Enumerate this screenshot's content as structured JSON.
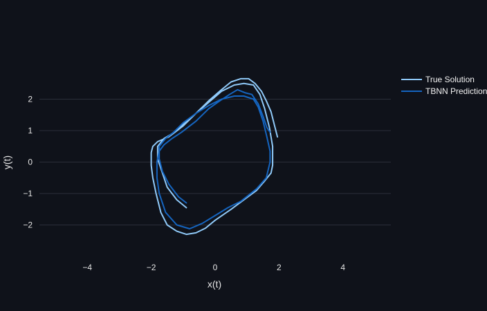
{
  "chart_data": {
    "type": "line",
    "title": "",
    "xlabel": "x(t)",
    "ylabel": "y(t)",
    "xlim": [
      -5.5,
      5.5
    ],
    "ylim": [
      -3.0,
      3.0
    ],
    "x_ticks": [
      -4,
      -2,
      0,
      2,
      4
    ],
    "y_ticks": [
      -2,
      -1,
      0,
      1,
      2
    ],
    "x_tick_labels": [
      "−4",
      "−2",
      "0",
      "2",
      "4"
    ],
    "y_tick_labels": [
      "−2",
      "−1",
      "0",
      "1",
      "2"
    ],
    "grid": "horizontal",
    "legend_placement": "top-right",
    "series": [
      {
        "name": "True Solution",
        "color": "#90caf9",
        "x": [
          -0.9,
          -1.2,
          -1.5,
          -1.65,
          -1.8,
          -1.8,
          -1.6,
          -1.35,
          -1.0,
          -0.6,
          -0.2,
          0.2,
          0.6,
          0.9,
          1.2,
          1.4,
          1.55,
          1.7,
          1.8,
          1.8,
          1.75,
          1.55,
          1.3,
          0.9,
          0.5,
          0.0,
          -0.3,
          -0.6,
          -0.9,
          -1.2,
          -1.5,
          -1.7,
          -1.85,
          -1.95,
          -2.0,
          -2.0,
          -1.95,
          -1.8,
          -1.45,
          -1.0,
          -0.6,
          -0.2,
          0.2,
          0.5,
          0.8,
          1.05,
          1.25,
          1.45,
          1.6,
          1.75,
          1.85,
          1.95
        ],
        "y": [
          -1.45,
          -1.2,
          -0.8,
          -0.35,
          0.1,
          0.5,
          0.75,
          0.9,
          1.2,
          1.55,
          1.9,
          2.25,
          2.45,
          2.5,
          2.45,
          2.15,
          1.7,
          1.1,
          0.5,
          -0.1,
          -0.35,
          -0.6,
          -0.9,
          -1.2,
          -1.5,
          -1.85,
          -2.1,
          -2.25,
          -2.3,
          -2.2,
          -2.0,
          -1.6,
          -1.0,
          -0.5,
          -0.1,
          0.3,
          0.5,
          0.65,
          0.8,
          1.15,
          1.55,
          1.95,
          2.3,
          2.55,
          2.65,
          2.65,
          2.5,
          2.25,
          1.95,
          1.6,
          1.2,
          0.8
        ]
      },
      {
        "name": "TBNN Prediction",
        "color": "#1565c0",
        "x": [
          -0.9,
          -1.15,
          -1.45,
          -1.65,
          -1.75,
          -1.75,
          -1.55,
          -1.3,
          -1.0,
          -0.6,
          -0.2,
          0.2,
          0.6,
          0.9,
          1.2,
          1.35,
          1.5,
          1.62,
          1.72,
          1.72,
          1.6,
          1.3,
          0.8,
          0.4,
          0.0,
          -0.4,
          -0.8,
          -1.2,
          -1.55,
          -1.75,
          -1.82,
          -1.82,
          -1.75,
          -1.6,
          -1.35,
          -1.05,
          -0.6,
          -0.2,
          0.15,
          0.45,
          0.7,
          0.95,
          1.15,
          1.35,
          1.5,
          1.62,
          1.72
        ],
        "y": [
          -1.3,
          -1.1,
          -0.7,
          -0.3,
          0.1,
          0.5,
          0.75,
          0.95,
          1.25,
          1.55,
          1.8,
          2.0,
          2.1,
          2.1,
          2.0,
          1.75,
          1.3,
          0.8,
          0.35,
          0.0,
          -0.5,
          -0.85,
          -1.25,
          -1.45,
          -1.7,
          -1.95,
          -2.12,
          -2.0,
          -1.6,
          -1.0,
          -0.5,
          0.0,
          0.35,
          0.55,
          0.75,
          0.95,
          1.3,
          1.7,
          1.95,
          2.15,
          2.3,
          2.2,
          2.15,
          1.85,
          1.45,
          1.1,
          0.95
        ]
      }
    ]
  }
}
